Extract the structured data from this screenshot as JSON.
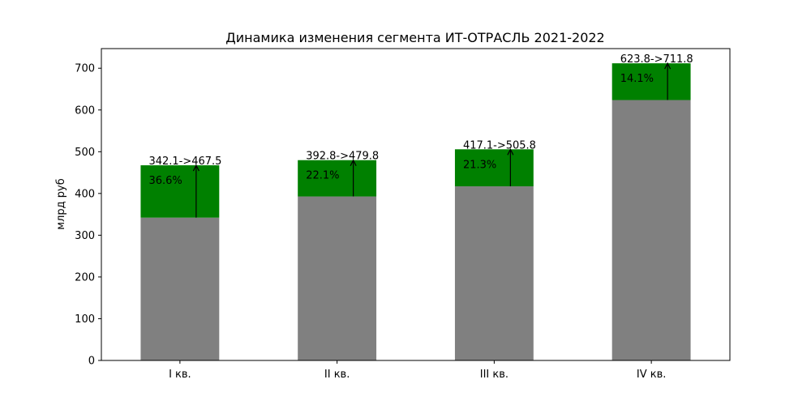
{
  "chart_data": {
    "type": "bar",
    "stacked": true,
    "title": "Динамика изменения сегмента ИТ-ОТРАСЛЬ 2021-2022",
    "ylabel": "млрд руб",
    "xlabel": "",
    "categories": [
      "I кв.",
      "II кв.",
      "III кв.",
      "IV кв."
    ],
    "series": [
      {
        "values": [
          342.1,
          392.8,
          417.1,
          623.8
        ],
        "color": "#808080"
      },
      {
        "values": [
          125.4,
          87.0,
          88.7,
          88.0
        ],
        "color": "#008000"
      }
    ],
    "totals": [
      467.5,
      479.8,
      505.8,
      711.8
    ],
    "bar_labels": [
      "342.1->467.5",
      "392.8->479.8",
      "417.1->505.8",
      "623.8->711.8"
    ],
    "percent_labels": [
      "36.6%",
      "22.1%",
      "21.3%",
      "14.1%"
    ],
    "yticks": [
      0,
      100,
      200,
      300,
      400,
      500,
      600,
      700
    ],
    "ylim": [
      0,
      747
    ],
    "grid": false,
    "legend": "none"
  }
}
